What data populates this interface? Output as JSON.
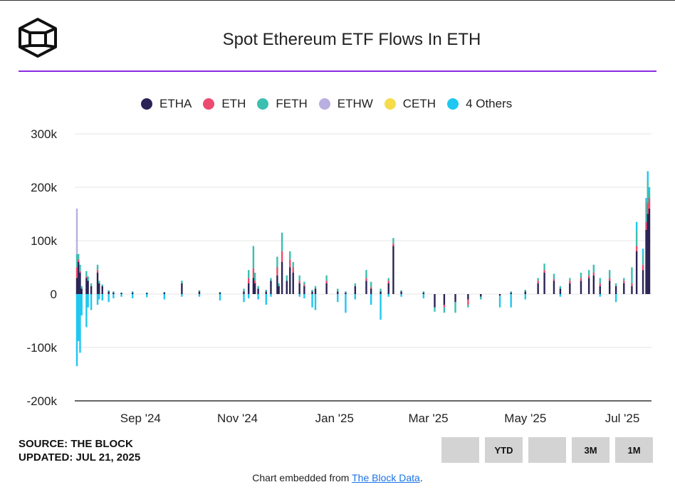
{
  "header": {
    "title": "Spot Ethereum ETF Flows In ETH"
  },
  "legend": [
    {
      "label": "ETHA",
      "color": "#2a2355"
    },
    {
      "label": "ETH",
      "color": "#ec4a6e"
    },
    {
      "label": "FETH",
      "color": "#3bbfb0"
    },
    {
      "label": "ETHW",
      "color": "#b9afe0"
    },
    {
      "label": "CETH",
      "color": "#f6dc4a"
    },
    {
      "label": "4 Others",
      "color": "#1ec8f0"
    }
  ],
  "chart_data": {
    "type": "bar",
    "stacked": true,
    "title": "Spot Ethereum ETF Flows In ETH",
    "ylim": [
      -200000,
      300000
    ],
    "y_ticks": [
      {
        "value": 300000,
        "label": "300k"
      },
      {
        "value": 200000,
        "label": "200k"
      },
      {
        "value": 100000,
        "label": "100k"
      },
      {
        "value": 0,
        "label": "0"
      },
      {
        "value": -100000,
        "label": "-100k"
      },
      {
        "value": -200000,
        "label": "-200k"
      }
    ],
    "x_ticks": [
      {
        "date": "2024-09-01",
        "label": "Sep '24"
      },
      {
        "date": "2024-11-01",
        "label": "Nov '24"
      },
      {
        "date": "2025-01-01",
        "label": "Jan '25"
      },
      {
        "date": "2025-03-01",
        "label": "Mar '25"
      },
      {
        "date": "2025-05-01",
        "label": "May '25"
      },
      {
        "date": "2025-07-01",
        "label": "Jul '25"
      }
    ],
    "grid": true,
    "legend_position": "top",
    "series_order": [
      "ETHA",
      "ETH",
      "FETH",
      "ETHW",
      "CETH",
      "4 Others"
    ],
    "x_range": [
      "2024-07-23",
      "2025-07-18"
    ],
    "data": [
      {
        "date": "2024-07-23",
        "ETHA": 30000,
        "ETH": 20000,
        "FETH": 25000,
        "ETHW": 85000,
        "CETH": 0,
        "4 Others": -135000
      },
      {
        "date": "2024-07-24",
        "ETHA": 60000,
        "ETH": 5000,
        "FETH": 10000,
        "ETHW": 0,
        "CETH": 0,
        "4 Others": -88000
      },
      {
        "date": "2024-07-25",
        "ETHA": 40000,
        "ETH": 3000,
        "FETH": 12000,
        "ETHW": 0,
        "CETH": 0,
        "4 Others": -110000
      },
      {
        "date": "2024-07-26",
        "ETHA": 10000,
        "ETH": 0,
        "FETH": 5000,
        "ETHW": 0,
        "CETH": 0,
        "4 Others": -40000
      },
      {
        "date": "2024-07-29",
        "ETHA": 30000,
        "ETH": 3000,
        "FETH": 10000,
        "ETHW": 0,
        "CETH": 0,
        "4 Others": -62000
      },
      {
        "date": "2024-07-30",
        "ETHA": 25000,
        "ETH": 0,
        "FETH": 8000,
        "ETHW": 0,
        "CETH": 0,
        "4 Others": -25000
      },
      {
        "date": "2024-08-01",
        "ETHA": 15000,
        "ETH": 0,
        "FETH": 5000,
        "ETHW": 0,
        "CETH": 0,
        "4 Others": -30000
      },
      {
        "date": "2024-08-05",
        "ETHA": 40000,
        "ETH": 5000,
        "FETH": 10000,
        "ETHW": 0,
        "CETH": 0,
        "4 Others": -20000
      },
      {
        "date": "2024-08-06",
        "ETHA": 20000,
        "ETH": 0,
        "FETH": 5000,
        "ETHW": 0,
        "CETH": 0,
        "4 Others": -10000
      },
      {
        "date": "2024-08-08",
        "ETHA": 15000,
        "ETH": 0,
        "FETH": 3000,
        "ETHW": 0,
        "CETH": 0,
        "4 Others": -12000
      },
      {
        "date": "2024-08-12",
        "ETHA": 5000,
        "ETH": 0,
        "FETH": 2000,
        "ETHW": 0,
        "CETH": 0,
        "4 Others": -15000
      },
      {
        "date": "2024-08-15",
        "ETHA": 3000,
        "ETH": 0,
        "FETH": 2000,
        "ETHW": 0,
        "CETH": 0,
        "4 Others": -8000
      },
      {
        "date": "2024-08-20",
        "ETHA": 2000,
        "ETH": 0,
        "FETH": 1000,
        "ETHW": 0,
        "CETH": 0,
        "4 Others": -5000
      },
      {
        "date": "2024-08-27",
        "ETHA": 3000,
        "ETH": 0,
        "FETH": 2000,
        "ETHW": 0,
        "CETH": 0,
        "4 Others": -8000
      },
      {
        "date": "2024-09-05",
        "ETHA": 2000,
        "ETH": 0,
        "FETH": 1000,
        "ETHW": 0,
        "CETH": 0,
        "4 Others": -6000
      },
      {
        "date": "2024-09-16",
        "ETHA": 3000,
        "ETH": 0,
        "FETH": 1000,
        "ETHW": 0,
        "CETH": 0,
        "4 Others": -10000
      },
      {
        "date": "2024-09-27",
        "ETHA": 20000,
        "ETH": 0,
        "FETH": 5000,
        "ETHW": 0,
        "CETH": 0,
        "4 Others": -5000
      },
      {
        "date": "2024-10-08",
        "ETHA": 5000,
        "ETH": 0,
        "FETH": 2000,
        "ETHW": 0,
        "CETH": 0,
        "4 Others": -5000
      },
      {
        "date": "2024-10-21",
        "ETHA": 3000,
        "ETH": 0,
        "FETH": 1000,
        "ETHW": 0,
        "CETH": 0,
        "4 Others": -12000
      },
      {
        "date": "2024-11-05",
        "ETHA": 5000,
        "ETH": 0,
        "FETH": 5000,
        "ETHW": 0,
        "CETH": 0,
        "4 Others": -15000
      },
      {
        "date": "2024-11-08",
        "ETHA": 20000,
        "ETH": 10000,
        "FETH": 15000,
        "ETHW": 0,
        "CETH": 0,
        "4 Others": -8000
      },
      {
        "date": "2024-11-11",
        "ETHA": 30000,
        "ETH": 18000,
        "FETH": 42000,
        "ETHW": 0,
        "CETH": 0,
        "4 Others": 0
      },
      {
        "date": "2024-11-12",
        "ETHA": 20000,
        "ETH": 5000,
        "FETH": 15000,
        "ETHW": 0,
        "CETH": 0,
        "4 Others": 0
      },
      {
        "date": "2024-11-14",
        "ETHA": 10000,
        "ETH": 0,
        "FETH": 5000,
        "ETHW": 0,
        "CETH": 0,
        "4 Others": -10000
      },
      {
        "date": "2024-11-19",
        "ETHA": 5000,
        "ETH": 0,
        "FETH": 3000,
        "ETHW": 0,
        "CETH": 0,
        "4 Others": -20000
      },
      {
        "date": "2024-11-22",
        "ETHA": 25000,
        "ETH": 0,
        "FETH": 5000,
        "ETHW": 0,
        "CETH": 0,
        "4 Others": -5000
      },
      {
        "date": "2024-11-26",
        "ETHA": 35000,
        "ETH": 15000,
        "FETH": 20000,
        "ETHW": 0,
        "CETH": 0,
        "4 Others": 0
      },
      {
        "date": "2024-11-27",
        "ETHA": 15000,
        "ETH": 0,
        "FETH": 5000,
        "ETHW": 0,
        "CETH": 0,
        "4 Others": 0
      },
      {
        "date": "2024-11-29",
        "ETHA": 60000,
        "ETH": 20000,
        "FETH": 35000,
        "ETHW": 0,
        "CETH": 0,
        "4 Others": 0
      },
      {
        "date": "2024-12-02",
        "ETHA": 25000,
        "ETH": 0,
        "FETH": 10000,
        "ETHW": 0,
        "CETH": 0,
        "4 Others": 0
      },
      {
        "date": "2024-12-04",
        "ETHA": 50000,
        "ETH": 15000,
        "FETH": 15000,
        "ETHW": 0,
        "CETH": 0,
        "4 Others": 0
      },
      {
        "date": "2024-12-06",
        "ETHA": 40000,
        "ETH": 10000,
        "FETH": 10000,
        "ETHW": 0,
        "CETH": 0,
        "4 Others": 0
      },
      {
        "date": "2024-12-10",
        "ETHA": 20000,
        "ETH": 5000,
        "FETH": 10000,
        "ETHW": 0,
        "CETH": 0,
        "4 Others": -5000
      },
      {
        "date": "2024-12-13",
        "ETHA": 15000,
        "ETH": 3000,
        "FETH": 5000,
        "ETHW": 0,
        "CETH": 0,
        "4 Others": -8000
      },
      {
        "date": "2024-12-18",
        "ETHA": 5000,
        "ETH": 0,
        "FETH": 3000,
        "ETHW": 0,
        "CETH": 0,
        "4 Others": -25000
      },
      {
        "date": "2024-12-20",
        "ETHA": 10000,
        "ETH": 0,
        "FETH": 5000,
        "ETHW": 0,
        "CETH": 0,
        "4 Others": -30000
      },
      {
        "date": "2024-12-27",
        "ETHA": 20000,
        "ETH": 5000,
        "FETH": 10000,
        "ETHW": 0,
        "CETH": 0,
        "4 Others": 0
      },
      {
        "date": "2025-01-03",
        "ETHA": 5000,
        "ETH": 0,
        "FETH": 5000,
        "ETHW": 0,
        "CETH": 0,
        "4 Others": -15000
      },
      {
        "date": "2025-01-08",
        "ETHA": 3000,
        "ETH": 0,
        "FETH": 2000,
        "ETHW": 0,
        "CETH": 0,
        "4 Others": -35000
      },
      {
        "date": "2025-01-14",
        "ETHA": 15000,
        "ETH": 0,
        "FETH": 5000,
        "ETHW": 0,
        "CETH": 0,
        "4 Others": -10000
      },
      {
        "date": "2025-01-21",
        "ETHA": 25000,
        "ETH": 5000,
        "FETH": 15000,
        "ETHW": 0,
        "CETH": 0,
        "4 Others": 0
      },
      {
        "date": "2025-01-24",
        "ETHA": 10000,
        "ETH": 3000,
        "FETH": 10000,
        "ETHW": 0,
        "CETH": 0,
        "4 Others": -20000
      },
      {
        "date": "2025-01-30",
        "ETHA": 5000,
        "ETH": 0,
        "FETH": 5000,
        "ETHW": 0,
        "CETH": 0,
        "4 Others": -48000
      },
      {
        "date": "2025-02-04",
        "ETHA": 20000,
        "ETH": 5000,
        "FETH": 5000,
        "ETHW": 0,
        "CETH": 0,
        "4 Others": -5000
      },
      {
        "date": "2025-02-07",
        "ETHA": 90000,
        "ETH": 5000,
        "FETH": 10000,
        "ETHW": 0,
        "CETH": 0,
        "4 Others": 0
      },
      {
        "date": "2025-02-12",
        "ETHA": 5000,
        "ETH": 0,
        "FETH": 2000,
        "ETHW": 0,
        "CETH": 0,
        "4 Others": -5000
      },
      {
        "date": "2025-02-26",
        "ETHA": 3000,
        "ETH": 0,
        "FETH": 2000,
        "ETHW": 0,
        "CETH": 0,
        "4 Others": -8000
      },
      {
        "date": "2025-03-05",
        "ETHA": -25000,
        "ETH": 0,
        "FETH": -8000,
        "ETHW": 0,
        "CETH": 0,
        "4 Others": 0
      },
      {
        "date": "2025-03-11",
        "ETHA": -20000,
        "ETH": -5000,
        "FETH": -10000,
        "ETHW": 0,
        "CETH": 0,
        "4 Others": 0
      },
      {
        "date": "2025-03-18",
        "ETHA": -15000,
        "ETH": 0,
        "FETH": -20000,
        "ETHW": 0,
        "CETH": 0,
        "4 Others": 0
      },
      {
        "date": "2025-03-26",
        "ETHA": -10000,
        "ETH": -10000,
        "FETH": -5000,
        "ETHW": 0,
        "CETH": 0,
        "4 Others": 0
      },
      {
        "date": "2025-04-03",
        "ETHA": -5000,
        "ETH": 0,
        "FETH": -5000,
        "ETHW": 0,
        "CETH": 0,
        "4 Others": 0
      },
      {
        "date": "2025-04-15",
        "ETHA": -3000,
        "ETH": 0,
        "FETH": -2000,
        "ETHW": 0,
        "CETH": 0,
        "4 Others": -20000
      },
      {
        "date": "2025-04-22",
        "ETHA": 3000,
        "ETH": 0,
        "FETH": 2000,
        "ETHW": 0,
        "CETH": 0,
        "4 Others": -25000
      },
      {
        "date": "2025-05-01",
        "ETHA": 5000,
        "ETH": 0,
        "FETH": 3000,
        "ETHW": 0,
        "CETH": 0,
        "4 Others": -10000
      },
      {
        "date": "2025-05-09",
        "ETHA": 20000,
        "ETH": 5000,
        "FETH": 5000,
        "ETHW": 0,
        "CETH": 0,
        "4 Others": 0
      },
      {
        "date": "2025-05-13",
        "ETHA": 40000,
        "ETH": 5000,
        "FETH": 12000,
        "ETHW": 0,
        "CETH": 0,
        "4 Others": 0
      },
      {
        "date": "2025-05-19",
        "ETHA": 25000,
        "ETH": 3000,
        "FETH": 10000,
        "ETHW": 0,
        "CETH": 0,
        "4 Others": 0
      },
      {
        "date": "2025-05-23",
        "ETHA": 10000,
        "ETH": 0,
        "FETH": 5000,
        "ETHW": 0,
        "CETH": 0,
        "4 Others": -5000
      },
      {
        "date": "2025-05-29",
        "ETHA": 20000,
        "ETH": 5000,
        "FETH": 5000,
        "ETHW": 0,
        "CETH": 0,
        "4 Others": 0
      },
      {
        "date": "2025-06-05",
        "ETHA": 25000,
        "ETH": 5000,
        "FETH": 10000,
        "ETHW": 0,
        "CETH": 0,
        "4 Others": 0
      },
      {
        "date": "2025-06-10",
        "ETHA": 30000,
        "ETH": 5000,
        "FETH": 10000,
        "ETHW": 0,
        "CETH": 0,
        "4 Others": 0
      },
      {
        "date": "2025-06-13",
        "ETHA": 35000,
        "ETH": 5000,
        "FETH": 15000,
        "ETHW": 0,
        "CETH": 0,
        "4 Others": 0
      },
      {
        "date": "2025-06-17",
        "ETHA": 15000,
        "ETH": 5000,
        "FETH": 10000,
        "ETHW": 0,
        "CETH": 0,
        "4 Others": -5000
      },
      {
        "date": "2025-06-23",
        "ETHA": 25000,
        "ETH": 5000,
        "FETH": 15000,
        "ETHW": 0,
        "CETH": 0,
        "4 Others": 0
      },
      {
        "date": "2025-06-27",
        "ETHA": 15000,
        "ETH": 0,
        "FETH": 5000,
        "ETHW": 0,
        "CETH": 0,
        "4 Others": -15000
      },
      {
        "date": "2025-07-02",
        "ETHA": 20000,
        "ETH": 5000,
        "FETH": 5000,
        "ETHW": 0,
        "CETH": 0,
        "4 Others": 0
      },
      {
        "date": "2025-07-07",
        "ETHA": 15000,
        "ETH": 5000,
        "FETH": 30000,
        "ETHW": 0,
        "CETH": 0,
        "4 Others": 0
      },
      {
        "date": "2025-07-10",
        "ETHA": 80000,
        "ETH": 10000,
        "FETH": 30000,
        "ETHW": 0,
        "CETH": 0,
        "4 Others": 15000
      },
      {
        "date": "2025-07-14",
        "ETHA": 45000,
        "ETH": 10000,
        "FETH": 20000,
        "ETHW": 0,
        "CETH": 0,
        "4 Others": 10000
      },
      {
        "date": "2025-07-16",
        "ETHA": 120000,
        "ETH": 15000,
        "FETH": 40000,
        "ETHW": 0,
        "CETH": 0,
        "4 Others": 5000
      },
      {
        "date": "2025-07-17",
        "ETHA": 150000,
        "ETH": 20000,
        "FETH": 40000,
        "ETHW": 0,
        "CETH": 0,
        "4 Others": 20000
      },
      {
        "date": "2025-07-18",
        "ETHA": 160000,
        "ETH": 20000,
        "FETH": 10000,
        "ETHW": 0,
        "CETH": 0,
        "4 Others": 10000
      }
    ]
  },
  "footer": {
    "source": "SOURCE: THE BLOCK",
    "updated": "UPDATED: JUL 21, 2025",
    "range_buttons": [
      "",
      "YTD",
      "",
      "3M",
      "1M"
    ],
    "embed_prefix": "Chart embedded from ",
    "embed_link": "The Block Data",
    "embed_suffix": "."
  }
}
